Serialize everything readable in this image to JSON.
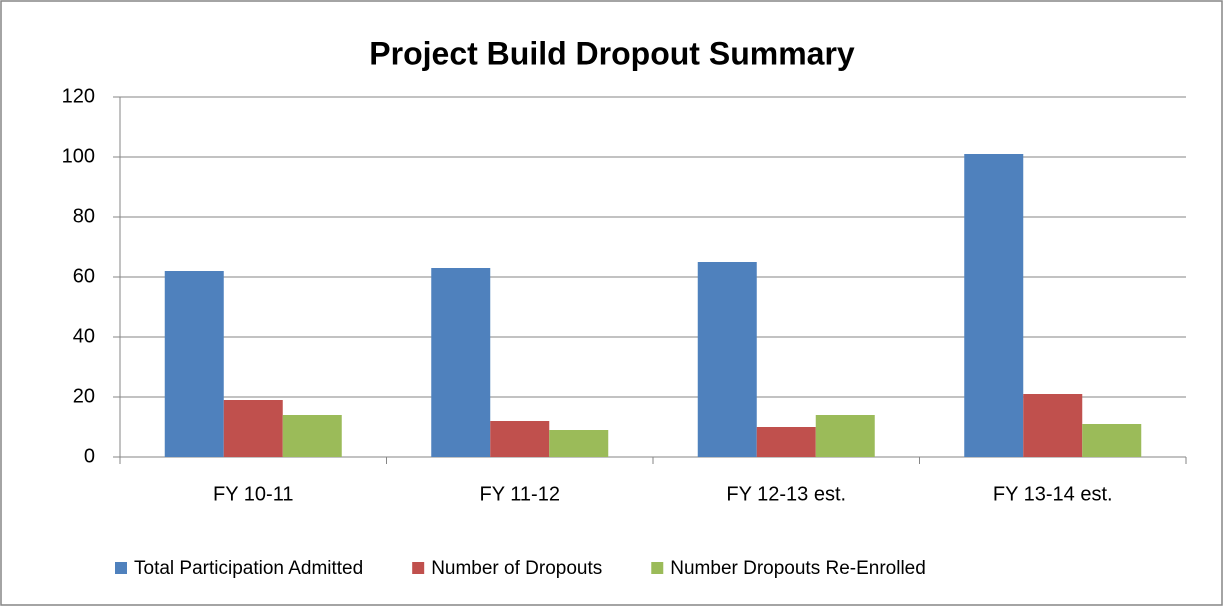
{
  "chart_data": {
    "type": "bar",
    "title": "Project Build Dropout Summary",
    "categories": [
      "FY 10-11",
      "FY 11-12",
      "FY 12-13 est.",
      "FY 13-14 est."
    ],
    "series": [
      {
        "name": "Total Participation Admitted",
        "color": "#4f81bd",
        "values": [
          62,
          63,
          65,
          101
        ]
      },
      {
        "name": "Number of Dropouts",
        "color": "#c0504d",
        "values": [
          19,
          12,
          10,
          21
        ]
      },
      {
        "name": "Number Dropouts Re-Enrolled",
        "color": "#9bbb59",
        "values": [
          14,
          9,
          14,
          11
        ]
      }
    ],
    "ylim": [
      0,
      120
    ],
    "yticks": [
      0,
      20,
      40,
      60,
      80,
      100,
      120
    ],
    "grid": true,
    "legend": "bottom"
  }
}
